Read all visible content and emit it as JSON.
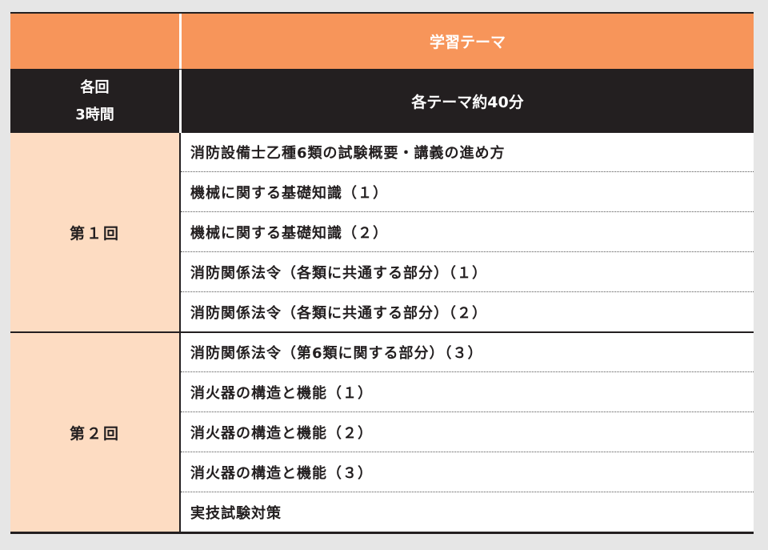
{
  "header": {
    "theme_title": "学習テーマ",
    "session_label_line1": "各回",
    "session_label_line2": "3時間",
    "theme_duration": "各テーマ約40分"
  },
  "groups": [
    {
      "label": "第１回",
      "items": [
        "消防設備士乙種6類の試験概要・講義の進め方",
        "機械に関する基礎知識（１）",
        "機械に関する基礎知識（２）",
        "消防関係法令（各類に共通する部分）（１）",
        "消防関係法令（各類に共通する部分）（２）"
      ]
    },
    {
      "label": "第２回",
      "items": [
        "消防関係法令（第6類に関する部分）（３）",
        "消火器の構造と機能（１）",
        "消火器の構造と機能（２）",
        "消火器の構造と機能（３）",
        "実技試験対策"
      ]
    }
  ],
  "colors": {
    "header_orange": "#f7955a",
    "header_dark": "#231f20",
    "session_fill": "#fddcc2"
  }
}
